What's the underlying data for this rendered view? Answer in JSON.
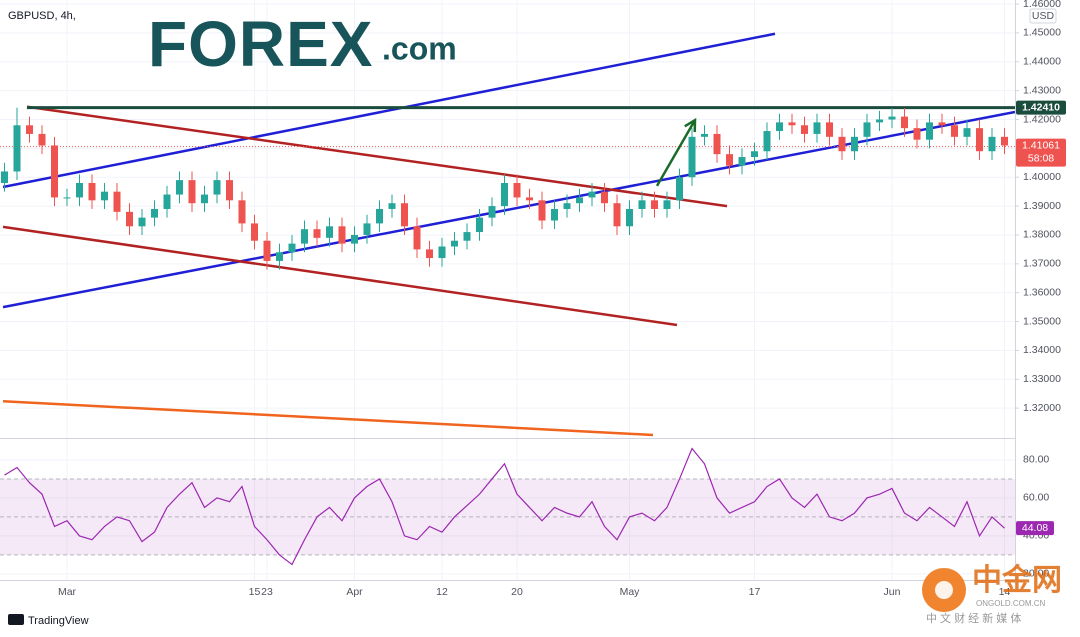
{
  "symbol": "GBPUSD, 4h,",
  "logo": "FOREX",
  "logo_suffix": ".com",
  "footer": "TradingView",
  "watermark": {
    "name": "中金网",
    "site": "ONGOLD.COM.CN",
    "tagline": "中 文 财 经 新 媒 体"
  },
  "chart_data": [
    {
      "type": "candlestick",
      "currency": "USD",
      "x": [
        -5,
        -4,
        -3,
        -2,
        -1,
        0,
        1,
        2,
        3,
        4,
        5,
        6,
        7,
        8,
        9,
        10,
        11,
        12,
        13,
        14,
        15,
        16,
        17,
        18,
        19,
        20,
        21,
        22,
        23,
        24,
        25,
        26,
        27,
        28,
        29,
        30,
        31,
        32,
        33,
        34,
        35,
        36,
        37,
        38,
        39,
        40,
        41,
        42,
        43,
        44,
        45,
        46,
        47,
        48,
        49,
        50,
        51,
        52,
        53,
        54,
        55,
        56,
        57,
        58,
        59,
        60,
        61,
        62,
        63,
        64,
        65,
        66,
        67,
        68,
        69,
        70,
        71,
        72,
        73,
        74,
        75
      ],
      "open": [
        1.398,
        1.402,
        1.418,
        1.415,
        1.411,
        1.393,
        1.393,
        1.398,
        1.392,
        1.395,
        1.388,
        1.383,
        1.386,
        1.389,
        1.394,
        1.399,
        1.391,
        1.394,
        1.399,
        1.392,
        1.384,
        1.378,
        1.371,
        1.374,
        1.377,
        1.382,
        1.379,
        1.383,
        1.377,
        1.38,
        1.384,
        1.389,
        1.391,
        1.383,
        1.375,
        1.372,
        1.376,
        1.378,
        1.381,
        1.386,
        1.39,
        1.398,
        1.393,
        1.392,
        1.385,
        1.389,
        1.391,
        1.393,
        1.395,
        1.391,
        1.383,
        1.389,
        1.392,
        1.389,
        1.392,
        1.4,
        1.414,
        1.415,
        1.408,
        1.404,
        1.407,
        1.409,
        1.416,
        1.419,
        1.418,
        1.415,
        1.419,
        1.414,
        1.409,
        1.414,
        1.419,
        1.42,
        1.421,
        1.417,
        1.413,
        1.419,
        1.418,
        1.414,
        1.417,
        1.409,
        1.414
      ],
      "high": [
        1.405,
        1.4241,
        1.421,
        1.418,
        1.414,
        1.396,
        1.401,
        1.401,
        1.398,
        1.398,
        1.391,
        1.389,
        1.392,
        1.397,
        1.402,
        1.402,
        1.397,
        1.402,
        1.402,
        1.395,
        1.387,
        1.381,
        1.377,
        1.38,
        1.385,
        1.385,
        1.386,
        1.386,
        1.383,
        1.387,
        1.392,
        1.394,
        1.394,
        1.386,
        1.378,
        1.379,
        1.381,
        1.384,
        1.389,
        1.393,
        1.401,
        1.401,
        1.396,
        1.395,
        1.392,
        1.394,
        1.396,
        1.398,
        1.398,
        1.394,
        1.392,
        1.395,
        1.395,
        1.395,
        1.403,
        1.417,
        1.418,
        1.418,
        1.411,
        1.41,
        1.412,
        1.419,
        1.422,
        1.422,
        1.421,
        1.422,
        1.422,
        1.417,
        1.417,
        1.422,
        1.423,
        1.424,
        1.424,
        1.42,
        1.422,
        1.422,
        1.421,
        1.42,
        1.42,
        1.417,
        1.417
      ],
      "low": [
        1.395,
        1.399,
        1.412,
        1.408,
        1.39,
        1.39,
        1.39,
        1.389,
        1.389,
        1.385,
        1.38,
        1.38,
        1.383,
        1.386,
        1.391,
        1.388,
        1.388,
        1.391,
        1.389,
        1.381,
        1.375,
        1.368,
        1.368,
        1.371,
        1.374,
        1.376,
        1.376,
        1.374,
        1.374,
        1.377,
        1.381,
        1.386,
        1.38,
        1.372,
        1.369,
        1.369,
        1.373,
        1.375,
        1.378,
        1.383,
        1.387,
        1.39,
        1.389,
        1.382,
        1.382,
        1.386,
        1.388,
        1.39,
        1.388,
        1.38,
        1.38,
        1.386,
        1.386,
        1.386,
        1.389,
        1.397,
        1.411,
        1.405,
        1.401,
        1.401,
        1.404,
        1.406,
        1.413,
        1.415,
        1.412,
        1.412,
        1.411,
        1.406,
        1.406,
        1.411,
        1.416,
        1.417,
        1.414,
        1.41,
        1.41,
        1.415,
        1.411,
        1.411,
        1.406,
        1.406,
        1.408
      ],
      "close": [
        1.402,
        1.418,
        1.415,
        1.411,
        1.393,
        1.393,
        1.398,
        1.392,
        1.395,
        1.388,
        1.383,
        1.386,
        1.389,
        1.394,
        1.399,
        1.391,
        1.394,
        1.399,
        1.392,
        1.384,
        1.378,
        1.371,
        1.374,
        1.377,
        1.382,
        1.379,
        1.383,
        1.377,
        1.38,
        1.384,
        1.389,
        1.391,
        1.383,
        1.375,
        1.372,
        1.376,
        1.378,
        1.381,
        1.386,
        1.39,
        1.398,
        1.393,
        1.392,
        1.385,
        1.389,
        1.391,
        1.393,
        1.395,
        1.391,
        1.383,
        1.389,
        1.392,
        1.389,
        1.392,
        1.4,
        1.414,
        1.415,
        1.408,
        1.404,
        1.407,
        1.409,
        1.416,
        1.419,
        1.418,
        1.415,
        1.419,
        1.414,
        1.409,
        1.414,
        1.419,
        1.42,
        1.421,
        1.417,
        1.413,
        1.419,
        1.418,
        1.414,
        1.417,
        1.409,
        1.414,
        1.411
      ],
      "up_color": "#26a69a",
      "down_color": "#ef5350",
      "xlim": [
        -5.36,
        75.84
      ],
      "ylim": [
        1.31,
        1.4614
      ],
      "xticks": [
        {
          "value": 0,
          "label": "Mar"
        },
        15,
        {
          "value": 16,
          "label": "23"
        },
        {
          "value": 23,
          "label": "Apr"
        },
        {
          "value": 30,
          "label": "12"
        },
        {
          "value": 36,
          "label": "20"
        },
        {
          "value": 45,
          "label": "May"
        },
        {
          "value": 55,
          "label": "17"
        },
        {
          "value": 66,
          "label": "Jun"
        },
        {
          "value": 75,
          "label": "14"
        }
      ],
      "yticks": [
        {
          "value": 1.46,
          "label": "1.46000"
        },
        {
          "value": 1.45,
          "label": "1.45000"
        },
        {
          "value": 1.44,
          "label": "1.44000"
        },
        {
          "value": 1.43,
          "label": "1.43000"
        },
        {
          "value": 1.42,
          "label": "1.42000"
        },
        {
          "value": 1.41,
          "label": "1.41000"
        },
        {
          "value": 1.4,
          "label": "1.40000"
        },
        {
          "value": 1.39,
          "label": "1.39000"
        },
        {
          "value": 1.38,
          "label": "1.38000"
        },
        {
          "value": 1.37,
          "label": "1.37000"
        },
        {
          "value": 1.36,
          "label": "1.36000"
        },
        {
          "value": 1.35,
          "label": "1.35000"
        },
        {
          "value": 1.34,
          "label": "1.34000"
        },
        {
          "value": 1.33,
          "label": "1.33000"
        },
        {
          "value": 1.32,
          "label": "1.32000"
        }
      ],
      "grid": true,
      "last_price": {
        "value": 1.41061,
        "label": "1.41061",
        "countdown": "58:08",
        "color": "#ef5350"
      },
      "level": {
        "value": 1.4241,
        "label": "1.42410",
        "color": "#1b4d3e",
        "x": [
          -3.2,
          75.84
        ]
      },
      "trendlines": [
        {
          "color": "#1f1fd6",
          "x": [
            -5.12,
            56.64
          ],
          "y": [
            1.3966,
            1.4497
          ]
        },
        {
          "color": "#1f1fd6",
          "x": [
            -5.12,
            75.84
          ],
          "y": [
            1.355,
            1.4226
          ]
        },
        {
          "color": "#b22222",
          "x": [
            -3.2,
            52.8
          ],
          "y": [
            1.4244,
            1.39
          ]
        },
        {
          "color": "#b22222",
          "x": [
            -5.12,
            48.8
          ],
          "y": [
            1.3828,
            1.3488
          ]
        },
        {
          "color": "#f0641e",
          "x": [
            -5.12,
            46.88
          ],
          "y": [
            1.3224,
            1.3107
          ]
        }
      ],
      "arrow": {
        "color": "#1b6b2a",
        "x": [
          47.2,
          50.24
        ],
        "y": [
          1.397,
          1.4198
        ]
      }
    },
    {
      "type": "line",
      "color": "#9c27b0",
      "values": [
        72,
        76,
        68,
        62,
        45,
        48,
        40,
        38,
        45,
        50,
        48,
        37,
        42,
        55,
        62,
        68,
        55,
        60,
        58,
        66,
        45,
        38,
        30,
        25,
        38,
        50,
        55,
        48,
        60,
        66,
        70,
        58,
        40,
        38,
        45,
        42,
        50,
        56,
        62,
        70,
        78,
        62,
        55,
        48,
        55,
        52,
        50,
        58,
        45,
        38,
        50,
        52,
        48,
        55,
        70,
        86,
        78,
        60,
        52,
        55,
        58,
        66,
        70,
        60,
        55,
        62,
        50,
        48,
        52,
        60,
        62,
        65,
        52,
        48,
        55,
        50,
        45,
        58,
        40,
        50,
        44.08
      ],
      "ylim": [
        16.8,
        90.5
      ],
      "yticks": [
        {
          "value": 80,
          "label": "80.00"
        },
        {
          "value": 60,
          "label": "60.00"
        },
        {
          "value": 40,
          "label": "40.00"
        },
        {
          "value": 20,
          "label": "20.00"
        }
      ],
      "band": [
        30,
        70
      ],
      "band_color": "#9c27b0",
      "midline": 50
    }
  ]
}
